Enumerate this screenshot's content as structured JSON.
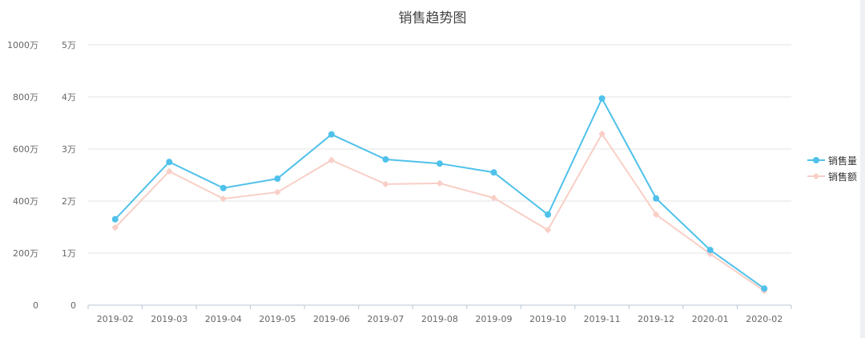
{
  "chart_data": {
    "type": "line",
    "title": "销售趋势图",
    "categories": [
      "2019-02",
      "2019-03",
      "2019-04",
      "2019-05",
      "2019-06",
      "2019-07",
      "2019-08",
      "2019-09",
      "2019-10",
      "2019-11",
      "2019-12",
      "2020-01",
      "2020-02"
    ],
    "y_axes": [
      {
        "ticks": [
          "0",
          "200万",
          "400万",
          "600万",
          "800万",
          "1000万"
        ],
        "range": [
          0,
          1000
        ],
        "unit": "万"
      },
      {
        "ticks": [
          "0",
          "1万",
          "2万",
          "3万",
          "4万",
          "5万"
        ],
        "range": [
          0,
          5
        ],
        "unit": "万"
      }
    ],
    "series": [
      {
        "name": "销售量",
        "axis": 1,
        "color": "#4fc1ea",
        "marker": "circle",
        "values": [
          1.65,
          2.75,
          2.25,
          2.43,
          3.28,
          2.8,
          2.72,
          2.55,
          1.74,
          3.97,
          2.05,
          1.06,
          0.32
        ]
      },
      {
        "name": "销售额",
        "axis": 0,
        "color": "#f8cfc6",
        "marker": "diamond",
        "values": [
          298,
          514,
          409,
          434,
          557,
          465,
          468,
          412,
          289,
          658,
          348,
          197,
          55
        ]
      }
    ],
    "grid": true,
    "legend": "right"
  }
}
